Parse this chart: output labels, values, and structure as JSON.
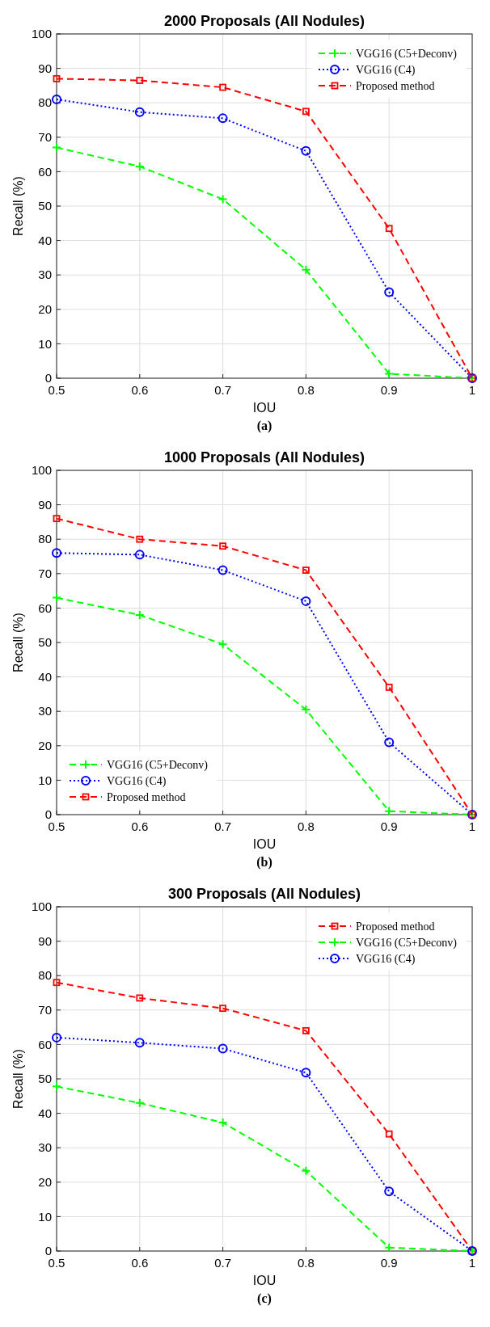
{
  "chart_data": [
    {
      "type": "line",
      "title": "2000 Proposals (All Nodules)",
      "xlabel": "IOU",
      "ylabel": "Recall (%)",
      "annotations": [
        "(a)"
      ],
      "x": [
        0.5,
        0.6,
        0.7,
        0.8,
        0.9,
        1
      ],
      "xlim": [
        0.5,
        1
      ],
      "xticks": [
        0.5,
        0.6,
        0.7,
        0.8,
        0.9,
        1
      ],
      "ylim": [
        0,
        100
      ],
      "yticks": [
        0,
        10,
        20,
        30,
        40,
        50,
        60,
        70,
        80,
        90,
        100
      ],
      "grid": true,
      "legend": "top right",
      "series": [
        {
          "name": "VGG16 (C5+Deconv)",
          "color": "#00ff00",
          "marker": "cross",
          "line_style": "dashed",
          "values": [
            67,
            61.5,
            52,
            31.5,
            1.3,
            0
          ]
        },
        {
          "name": "VGG16 (C4)",
          "color": "#0000ff",
          "marker": "circle",
          "line_style": "dotted",
          "values": [
            81,
            77.3,
            75.5,
            66,
            25,
            0
          ]
        },
        {
          "name": "Proposed method",
          "color": "#ff0000",
          "marker": "square",
          "line_style": "dashed",
          "values": [
            87,
            86.5,
            84.5,
            77.5,
            43.5,
            0
          ]
        }
      ]
    },
    {
      "type": "line",
      "title": "1000 Proposals (All Nodules)",
      "xlabel": "IOU",
      "ylabel": "Recall (%)",
      "annotations": [
        "(b)"
      ],
      "x": [
        0.5,
        0.6,
        0.7,
        0.8,
        0.9,
        1
      ],
      "xlim": [
        0.5,
        1
      ],
      "xticks": [
        0.5,
        0.6,
        0.7,
        0.8,
        0.9,
        1
      ],
      "ylim": [
        0,
        100
      ],
      "yticks": [
        0,
        10,
        20,
        30,
        40,
        50,
        60,
        70,
        80,
        90,
        100
      ],
      "grid": true,
      "legend": "bottom left",
      "series": [
        {
          "name": "VGG16 (C5+Deconv)",
          "color": "#00ff00",
          "marker": "cross",
          "line_style": "dashed",
          "values": [
            63,
            58,
            49.5,
            30.5,
            1,
            0
          ]
        },
        {
          "name": "VGG16 (C4)",
          "color": "#0000ff",
          "marker": "circle",
          "line_style": "dotted",
          "values": [
            76,
            75.5,
            71,
            62,
            21,
            0
          ]
        },
        {
          "name": "Proposed method",
          "color": "#ff0000",
          "marker": "square",
          "line_style": "dashed",
          "values": [
            86,
            80,
            78,
            71,
            37,
            0
          ]
        }
      ]
    },
    {
      "type": "line",
      "title": "300 Proposals (All Nodules)",
      "xlabel": "IOU",
      "ylabel": "Recall (%)",
      "annotations": [
        "(c)"
      ],
      "x": [
        0.5,
        0.6,
        0.7,
        0.8,
        0.9,
        1
      ],
      "xlim": [
        0.5,
        1
      ],
      "xticks": [
        0.5,
        0.6,
        0.7,
        0.8,
        0.9,
        1
      ],
      "ylim": [
        0,
        100
      ],
      "yticks": [
        0,
        10,
        20,
        30,
        40,
        50,
        60,
        70,
        80,
        90,
        100
      ],
      "grid": true,
      "legend": "top right",
      "series": [
        {
          "name": "Proposed method",
          "color": "#ff0000",
          "marker": "square",
          "line_style": "dashed",
          "values": [
            78,
            73.5,
            70.5,
            64,
            34,
            0
          ]
        },
        {
          "name": "VGG16 (C5+Deconv)",
          "color": "#00ff00",
          "marker": "cross",
          "line_style": "dashed",
          "values": [
            47.8,
            43,
            37.3,
            23.3,
            1,
            0
          ]
        },
        {
          "name": "VGG16 (C4)",
          "color": "#0000ff",
          "marker": "circle",
          "line_style": "dotted",
          "values": [
            62,
            60.5,
            58.8,
            51.8,
            17.3,
            0
          ]
        }
      ]
    }
  ]
}
